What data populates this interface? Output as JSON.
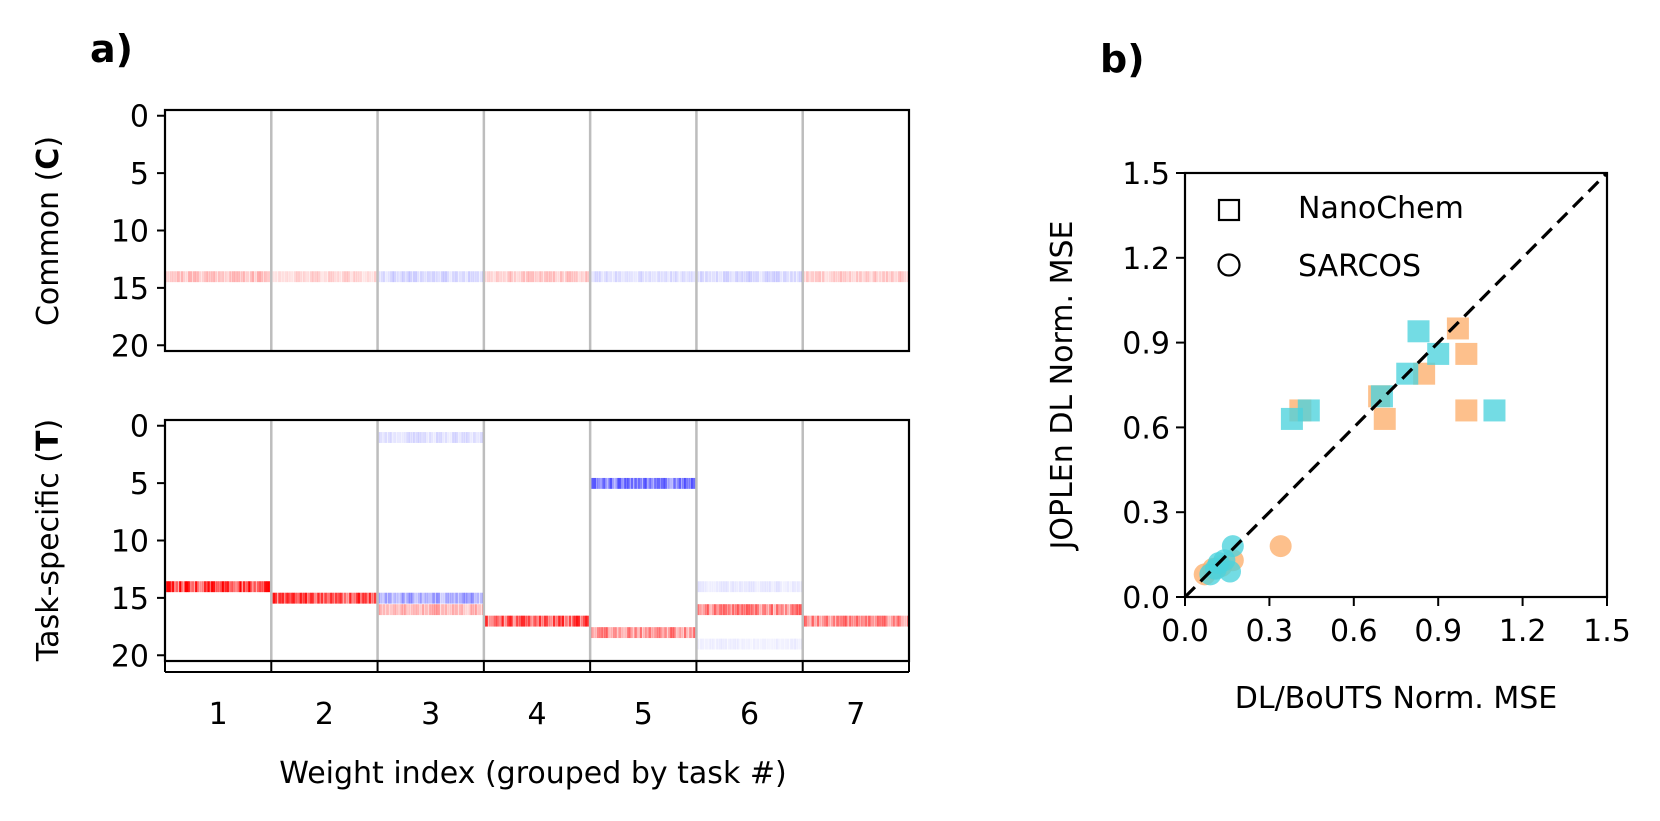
{
  "chart_data": [
    {
      "id": "a",
      "type": "heatmap",
      "panel_label": "a)",
      "xlabel": "Weight index (grouped by task #)",
      "group_labels": [
        "1",
        "2",
        "3",
        "4",
        "5",
        "6",
        "7"
      ],
      "rows": 21,
      "subplots": [
        {
          "name": "common",
          "ylabel_pre": "Common (",
          "ylabel_bold": "C",
          "ylabel_post": ")",
          "yticks": [
            0,
            5,
            10,
            15,
            20
          ],
          "bands": [
            {
              "task": 1,
              "row": 14,
              "color": "red",
              "intensity": 0.25
            },
            {
              "task": 2,
              "row": 14,
              "color": "red",
              "intensity": 0.15
            },
            {
              "task": 3,
              "row": 14,
              "color": "blue",
              "intensity": 0.15
            },
            {
              "task": 4,
              "row": 14,
              "color": "red",
              "intensity": 0.2
            },
            {
              "task": 5,
              "row": 14,
              "color": "blue",
              "intensity": 0.12
            },
            {
              "task": 6,
              "row": 14,
              "color": "blue",
              "intensity": 0.15
            },
            {
              "task": 7,
              "row": 14,
              "color": "red",
              "intensity": 0.2
            }
          ]
        },
        {
          "name": "task-specific",
          "ylabel_pre": "Task-specific (",
          "ylabel_bold": "T",
          "ylabel_post": ")",
          "yticks": [
            0,
            5,
            10,
            15,
            20
          ],
          "bands": [
            {
              "task": 1,
              "row": 14,
              "color": "red",
              "intensity": 0.85
            },
            {
              "task": 2,
              "row": 15,
              "color": "red",
              "intensity": 0.75
            },
            {
              "task": 3,
              "row": 1,
              "color": "blue",
              "intensity": 0.12
            },
            {
              "task": 3,
              "row": 15,
              "color": "blue",
              "intensity": 0.35
            },
            {
              "task": 3,
              "row": 16,
              "color": "red",
              "intensity": 0.3
            },
            {
              "task": 4,
              "row": 17,
              "color": "red",
              "intensity": 0.75
            },
            {
              "task": 5,
              "row": 5,
              "color": "blue",
              "intensity": 0.55
            },
            {
              "task": 5,
              "row": 18,
              "color": "red",
              "intensity": 0.45
            },
            {
              "task": 6,
              "row": 14,
              "color": "blue",
              "intensity": 0.08
            },
            {
              "task": 6,
              "row": 16,
              "color": "red",
              "intensity": 0.5
            },
            {
              "task": 6,
              "row": 19,
              "color": "blue",
              "intensity": 0.06
            },
            {
              "task": 7,
              "row": 17,
              "color": "red",
              "intensity": 0.5
            }
          ]
        }
      ]
    },
    {
      "id": "b",
      "type": "scatter",
      "panel_label": "b)",
      "xlabel": "DL/BoUTS Norm. MSE",
      "ylabel": "JOPLEn DL Norm. MSE",
      "xlim": [
        0,
        1.5
      ],
      "ylim": [
        0,
        1.5
      ],
      "xticks": [
        "0.0",
        "0.3",
        "0.6",
        "0.9",
        "1.2",
        "1.5"
      ],
      "yticks": [
        "0.0",
        "0.3",
        "0.6",
        "0.9",
        "1.2",
        "1.5"
      ],
      "reference_line": {
        "from": [
          0,
          0
        ],
        "to": [
          1.5,
          1.5
        ],
        "style": "dashed",
        "color": "#000000"
      },
      "legend": [
        {
          "marker": "square",
          "label": "NanoChem"
        },
        {
          "marker": "circle",
          "label": "SARCOS"
        }
      ],
      "colors": {
        "DL": "#fdae6b",
        "BoUTS": "#4cd2dc"
      },
      "series": [
        {
          "name": "NanoChem DL",
          "marker": "square",
          "color": "#fdae6b",
          "points": [
            [
              0.97,
              0.95
            ],
            [
              1.0,
              0.86
            ],
            [
              0.85,
              0.79
            ],
            [
              1.0,
              0.66
            ],
            [
              0.71,
              0.63
            ],
            [
              0.41,
              0.66
            ],
            [
              0.69,
              0.71
            ]
          ]
        },
        {
          "name": "NanoChem BoUTS",
          "marker": "square",
          "color": "#4cd2dc",
          "points": [
            [
              0.83,
              0.94
            ],
            [
              0.9,
              0.86
            ],
            [
              0.79,
              0.79
            ],
            [
              1.1,
              0.66
            ],
            [
              0.7,
              0.71
            ],
            [
              0.44,
              0.66
            ],
            [
              0.38,
              0.63
            ]
          ]
        },
        {
          "name": "SARCOS DL",
          "marker": "circle",
          "color": "#fdae6b",
          "points": [
            [
              0.34,
              0.18
            ],
            [
              0.17,
              0.13
            ],
            [
              0.1,
              0.1
            ],
            [
              0.07,
              0.08
            ],
            [
              0.13,
              0.11
            ]
          ]
        },
        {
          "name": "SARCOS BoUTS",
          "marker": "circle",
          "color": "#4cd2dc",
          "points": [
            [
              0.17,
              0.18
            ],
            [
              0.14,
              0.13
            ],
            [
              0.11,
              0.1
            ],
            [
              0.16,
              0.09
            ],
            [
              0.09,
              0.08
            ],
            [
              0.12,
              0.12
            ]
          ]
        }
      ]
    }
  ]
}
